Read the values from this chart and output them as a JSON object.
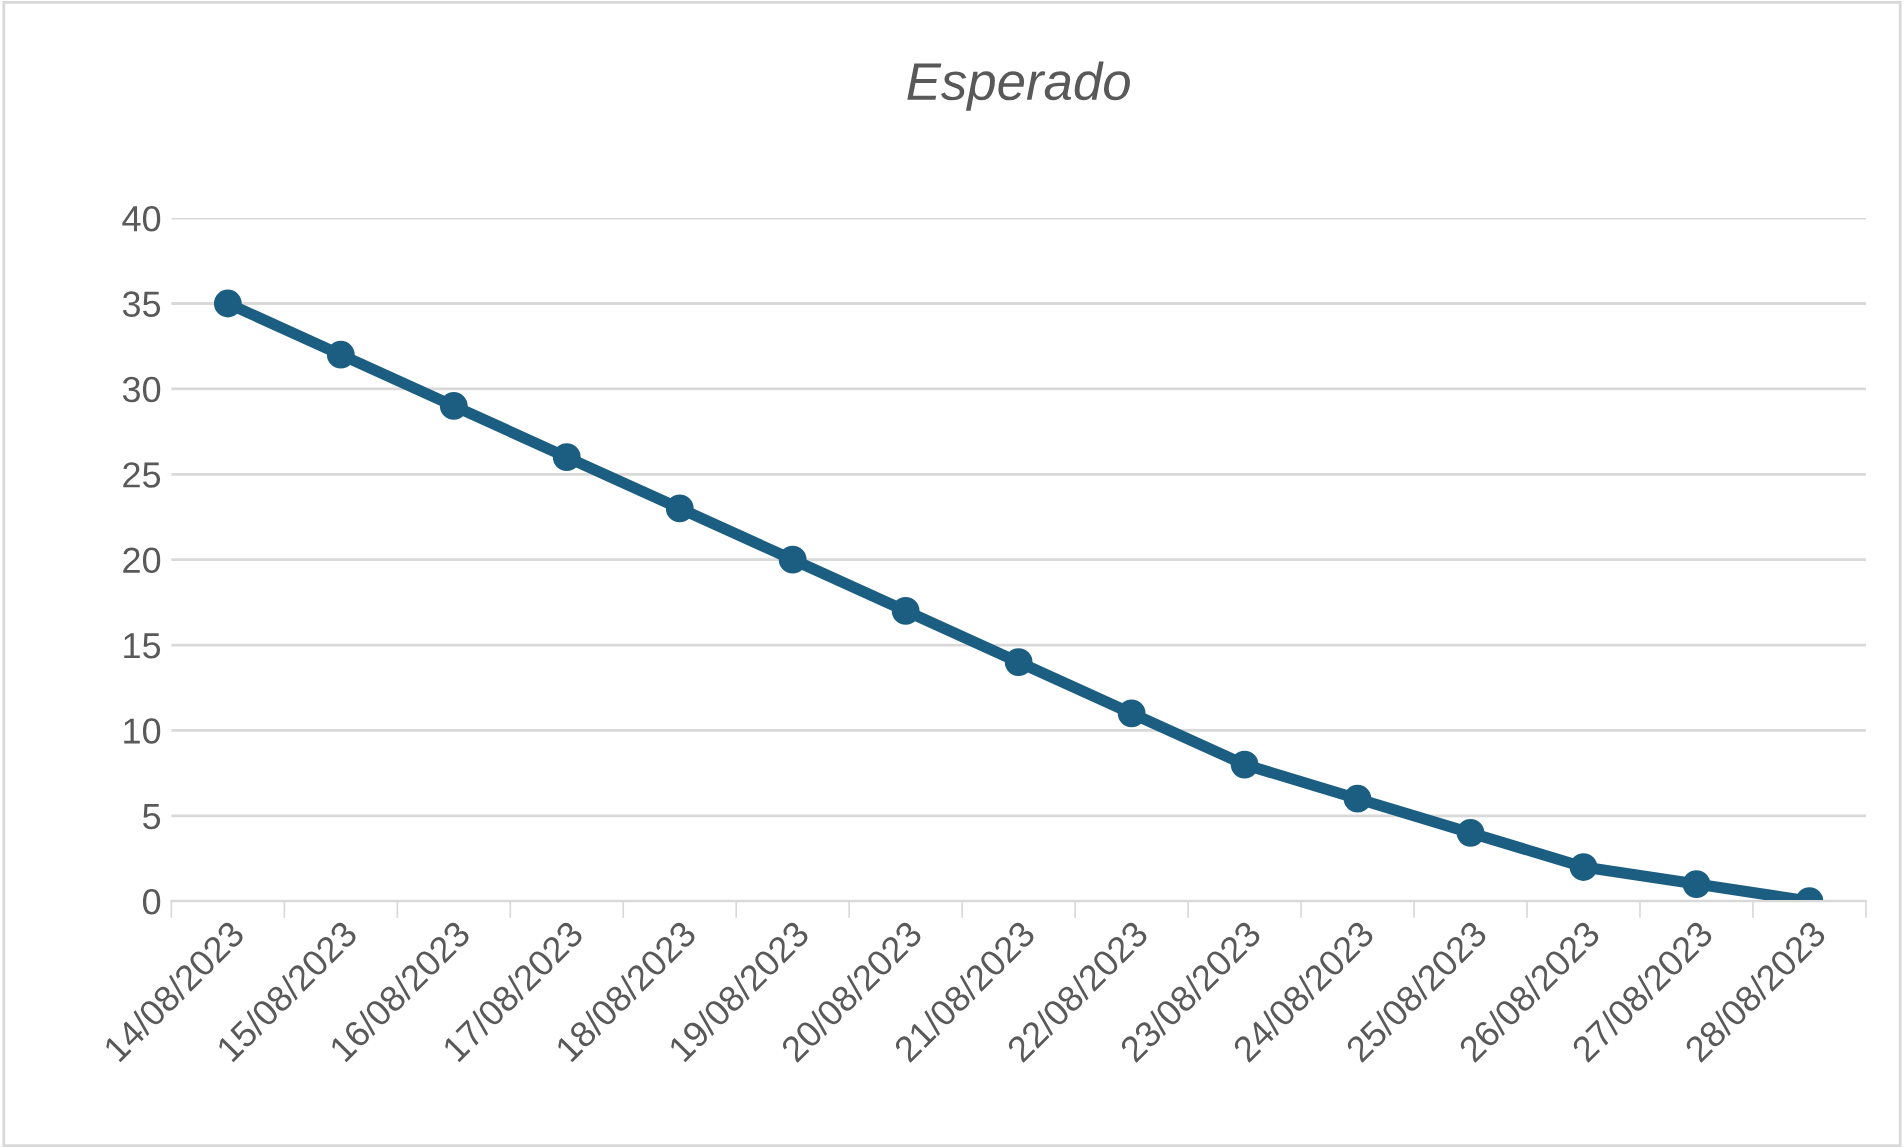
{
  "chart_data": {
    "type": "line",
    "title": "Esperado",
    "categories": [
      "14/08/2023",
      "15/08/2023",
      "16/08/2023",
      "17/08/2023",
      "18/08/2023",
      "19/08/2023",
      "20/08/2023",
      "21/08/2023",
      "22/08/2023",
      "23/08/2023",
      "24/08/2023",
      "25/08/2023",
      "26/08/2023",
      "27/08/2023",
      "28/08/2023"
    ],
    "series": [
      {
        "color": "#1b5e82",
        "values": [
          35,
          32,
          29,
          26,
          23,
          20,
          17,
          14,
          11,
          8,
          6,
          4,
          2,
          1,
          0
        ]
      }
    ],
    "ylim": [
      0,
      40
    ],
    "yticks": [
      0,
      5,
      10,
      15,
      20,
      25,
      30,
      35,
      40
    ],
    "grid": "y",
    "marker": "circle",
    "line_style": "solid"
  }
}
